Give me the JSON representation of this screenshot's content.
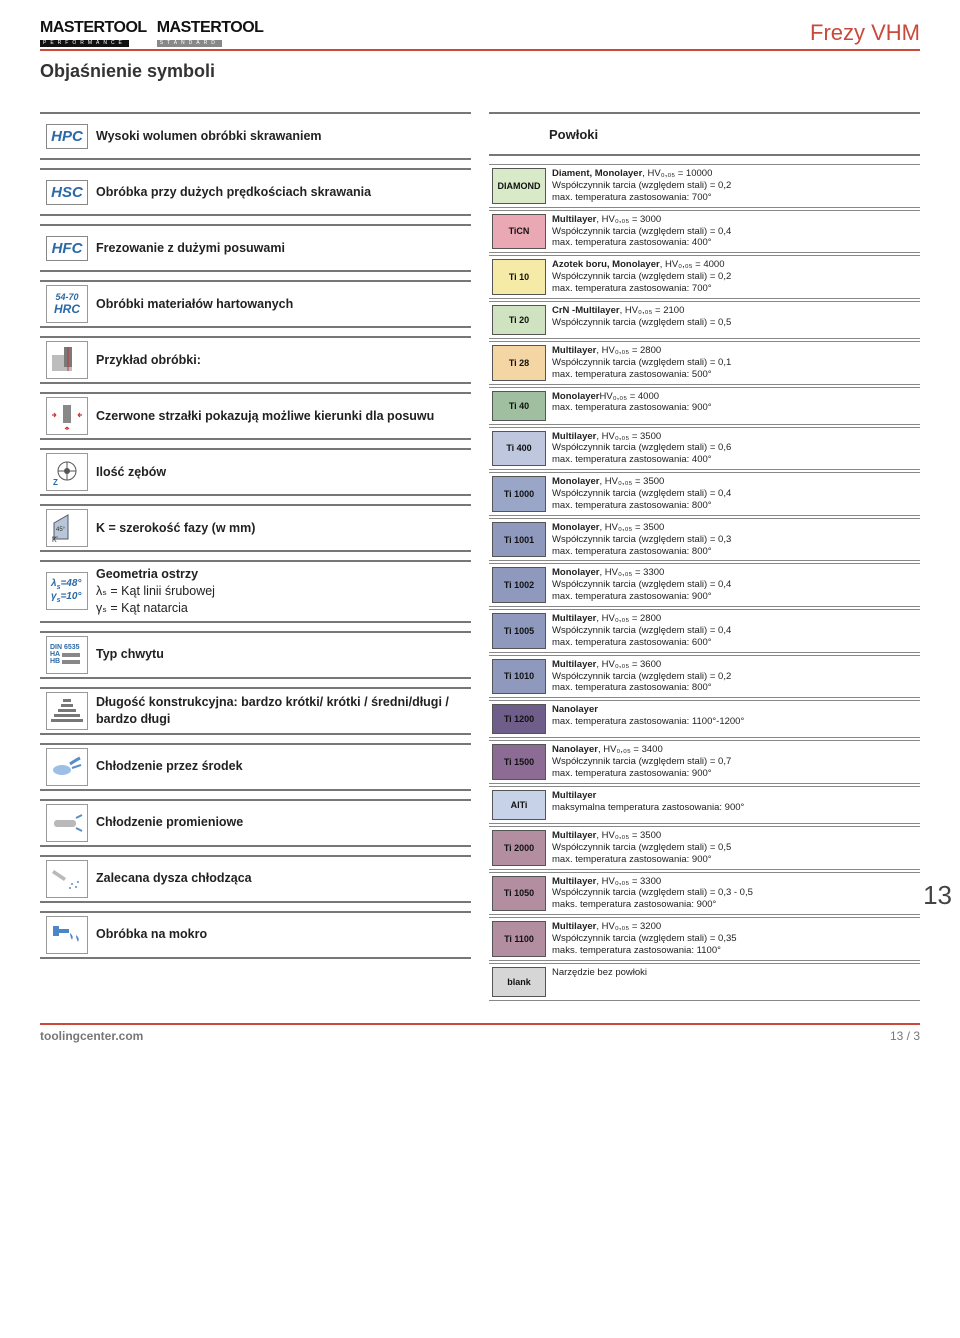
{
  "header": {
    "logo_name": "MASTERTOOL",
    "logo_sub_perf": "PERFORMANCE",
    "logo_sub_std": "STANDARD",
    "category": "Frezy VHM"
  },
  "section_title": "Objaśnienie symboli",
  "left": [
    {
      "badge": "HPC",
      "type": "badge",
      "desc": "Wysoki wolumen obróbki skrawaniem"
    },
    {
      "badge": "HSC",
      "type": "badge",
      "desc": "Obróbka przy dużych prędkościach skrawania"
    },
    {
      "badge": "HFC",
      "type": "badge",
      "desc": "Frezowanie z dużymi posuwami"
    },
    {
      "type": "hrc",
      "line1": "54-70",
      "line2": "HRC",
      "desc": "Obróbki materiałów hartowanych"
    },
    {
      "type": "svg-cut",
      "desc": "Przykład obróbki:"
    },
    {
      "type": "svg-arrows",
      "desc": "Czerwone strzałki pokazują możliwe kierunki dla posuwu"
    },
    {
      "type": "svg-teeth",
      "desc": "Ilość zębów"
    },
    {
      "type": "svg-chamfer",
      "desc": "K = szerokość fazy (w mm)"
    },
    {
      "type": "geom",
      "p1": "λ",
      "p1s": "s",
      "p1eq": "=48°",
      "p2": "γ",
      "p2s": "s",
      "p2eq": "=10°",
      "desc_title": "Geometria ostrzy",
      "desc_l2": "λₛ = Kąt linii śrubowej",
      "desc_l3": "γₛ = Kąt natarcia"
    },
    {
      "type": "shank",
      "t1": "DIN 6535",
      "t2": "HA",
      "t3": "HB",
      "desc": "Typ chwytu"
    },
    {
      "type": "svg-len",
      "desc_html": "<b>Długość konstrukcyjna:</b> bardzo krótki/ krótki / średni/<b>długi</b> / bardzo długi"
    },
    {
      "type": "svg-cool-center",
      "desc": "Chłodzenie przez środek"
    },
    {
      "type": "svg-cool-rad",
      "desc": "Chłodzenie promieniowe"
    },
    {
      "type": "svg-nozzle",
      "desc": "Zalecana dysza chłodząca"
    },
    {
      "type": "svg-wet",
      "desc": "Obróbka na mokro"
    }
  ],
  "coatings_title": "Powłoki",
  "coatings": [
    {
      "tag": "DIAMOND",
      "color": "#d9eac8",
      "lines": [
        "<b>Diament, Monolayer</b>, HV₀,₀₅ = 10000",
        "Współczynnik tarcia (względem stali) = 0,2",
        "max. temperatura zastosowania: 700°"
      ]
    },
    {
      "tag": "TiCN",
      "color": "#e9a8b3",
      "lines": [
        "<b>Multilayer</b>, HV₀,₀₅ = 3000",
        "Współczynnik tarcia (względem stali) = 0,4",
        "max. temperatura zastosowania: 400°"
      ]
    },
    {
      "tag": "Ti 10",
      "color": "#f5eaa6",
      "lines": [
        "<b>Azotek boru, Monolayer</b>, HV₀,₀₅ = 4000",
        "Współczynnik tarcia (względem stali) = 0,2",
        "max. temperatura zastosowania: 700°"
      ]
    },
    {
      "tag": "Ti 20",
      "color": "#cfe3c0",
      "lines": [
        "<b>CrN -Multilayer</b>, HV₀,₀₅ = 2100",
        "Współczynnik tarcia (względem stali) = 0,5"
      ]
    },
    {
      "tag": "Ti 28",
      "color": "#f3d6a3",
      "lines": [
        "<b>Multilayer</b>, HV₀,₀₅ = 2800",
        "Współczynnik tarcia (względem stali) = 0,1",
        "max. temperatura zastosowania: 500°"
      ]
    },
    {
      "tag": "Ti 40",
      "color": "#9fbfa0",
      "lines": [
        "<b>Monolayer</b>HV₀,₀₅ = 4000",
        "max. temperatura zastosowania: 900°"
      ]
    },
    {
      "tag": "Ti 400",
      "color": "#bfc7df",
      "lines": [
        "<b>Multilayer</b>, HV₀,₀₅ = 3500",
        "Współczynnik tarcia (względem stali) = 0,6",
        "max. temperatura zastosowania:  400°"
      ]
    },
    {
      "tag": "Ti 1000",
      "color": "#9aa6c8",
      "lines": [
        "<b>Monolayer</b>, HV₀,₀₅ = 3500",
        "Współczynnik tarcia (względem stali) = 0,4",
        " max. temperatura zastosowania: 800°"
      ]
    },
    {
      "tag": "Ti 1001",
      "color": "#8f99bd",
      "lines": [
        "<b>Monolayer</b>, HV₀,₀₅ = 3500",
        "Współczynnik tarcia (względem stali) = 0,3",
        "max. temperatura zastosowania: 800°"
      ]
    },
    {
      "tag": "Ti 1002",
      "color": "#8f99bd",
      "lines": [
        "<b>Monolayer</b>, HV₀,₀₅ = 3300",
        "Współczynnik tarcia (względem stali) = 0,4",
        "max. temperatura zastosowania: 900°"
      ]
    },
    {
      "tag": "Ti 1005",
      "color": "#8f99bd",
      "lines": [
        "<b>Multilayer</b>, HV₀,₀₅ = 2800",
        "Współczynnik tarcia (względem stali) = 0,4",
        " max. temperatura zastosowania: 600°"
      ]
    },
    {
      "tag": "Ti 1010",
      "color": "#8f99bd",
      "lines": [
        "<b>Multilayer</b>, HV₀,₀₅ = 3600",
        "Współczynnik tarcia (względem stali) = 0,2",
        "max. temperatura zastosowania: 800°"
      ]
    },
    {
      "tag": "Ti 1200",
      "color": "#6f5d8a",
      "lines": [
        "<b>Nanolayer</b>",
        "max. temperatura zastosowania: 1100°-1200°"
      ]
    },
    {
      "tag": "Ti 1500",
      "color": "#8c6b95",
      "lines": [
        "<b>Nanolayer</b>, HV₀,₀₅ = 3400",
        "Współczynnik tarcia (względem stali) = 0,7",
        "max. temperatura zastosowania: 900°"
      ]
    },
    {
      "tag": "AlTi",
      "color": "#c7d1e7",
      "lines": [
        "<b>Multilayer</b>",
        "maksymalna temperatura zastosowania: 900°"
      ]
    },
    {
      "tag": "Ti 2000",
      "color": "#b38ea1",
      "lines": [
        "<b>Multilayer</b>, HV₀,₀₅ = 3500",
        "Współczynnik tarcia (względem stali) = 0,5",
        "max. temperatura zastosowania: 900°"
      ]
    },
    {
      "tag": "Ti 1050",
      "color": "#b38ea1",
      "lines": [
        "<b>Multilayer</b>, HV₀,₀₅ = 3300",
        "Współczynnik tarcia (względem stali) = 0,3 - 0,5",
        "maks. temperatura zastosowania: 900°"
      ]
    },
    {
      "tag": "Ti 1100",
      "color": "#b38ea1",
      "lines": [
        "<b>Multilayer</b>, HV₀,₀₅ = 3200",
        "Współczynnik tarcia (względem stali) = 0,35",
        "maks. temperatura zastosowania: 1100°"
      ]
    },
    {
      "tag": "blank",
      "color": "#d6d6d6",
      "lines": [
        "Narzędzie bez powłoki"
      ]
    }
  ],
  "side_number": "13",
  "footer": {
    "site": "toolingcenter.com",
    "page": "13 / 3"
  }
}
